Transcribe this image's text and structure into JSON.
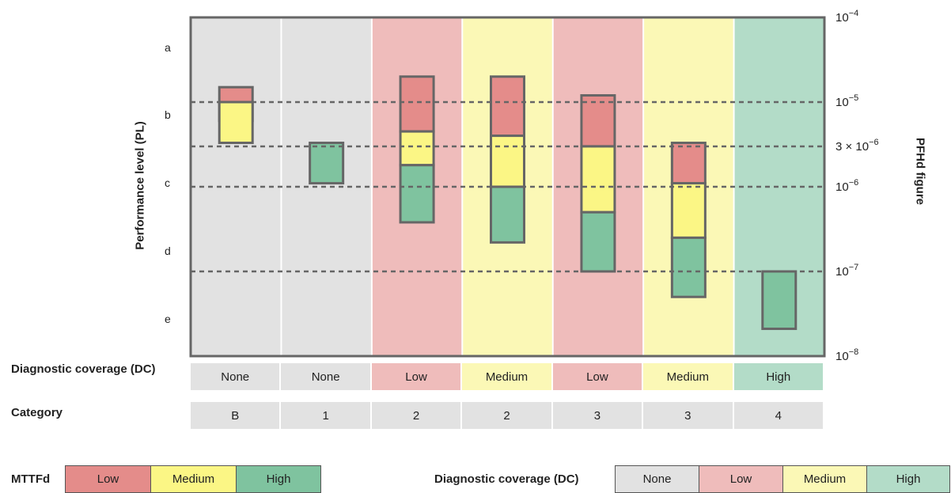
{
  "colors": {
    "dc_none": "#e2e2e2",
    "dc_low": "#efbcbb",
    "dc_medium": "#fbf8b6",
    "dc_high": "#b3dcc8",
    "mttfd_low": "#e48c8a",
    "mttfd_medium": "#fbf685",
    "mttfd_high": "#7fc39f",
    "border": "#666666"
  },
  "axes": {
    "left_label": "Performance level (PL)",
    "right_label": "PFHd figure",
    "pl_levels": [
      "a",
      "b",
      "c",
      "d",
      "e"
    ]
  },
  "pfhd_ticks": [
    {
      "id": "t4",
      "base": "10",
      "sup": "−4",
      "prefix": ""
    },
    {
      "id": "t5",
      "base": "10",
      "sup": "−5",
      "prefix": ""
    },
    {
      "id": "t3e6",
      "base": "10",
      "sup": "−6",
      "prefix": "3 × "
    },
    {
      "id": "t6",
      "base": "10",
      "sup": "−6",
      "prefix": ""
    },
    {
      "id": "t7",
      "base": "10",
      "sup": "−7",
      "prefix": ""
    },
    {
      "id": "t8",
      "base": "10",
      "sup": "−8",
      "prefix": ""
    }
  ],
  "table": {
    "dc_label": "Diagnostic coverage (DC)",
    "category_label": "Category",
    "columns": [
      {
        "dc": "None",
        "category": "B",
        "dc_key": "none"
      },
      {
        "dc": "None",
        "category": "1",
        "dc_key": "none"
      },
      {
        "dc": "Low",
        "category": "2",
        "dc_key": "low"
      },
      {
        "dc": "Medium",
        "category": "2",
        "dc_key": "medium"
      },
      {
        "dc": "Low",
        "category": "3",
        "dc_key": "low"
      },
      {
        "dc": "Medium",
        "category": "3",
        "dc_key": "medium"
      },
      {
        "dc": "High",
        "category": "4",
        "dc_key": "high"
      }
    ]
  },
  "chart_data": {
    "type": "stacked-range",
    "y_axis": "PFHd figure (log scale)",
    "ylim": [
      1e-08,
      0.0001
    ],
    "columns": [
      {
        "category": "B",
        "dc": "None",
        "segments": [
          {
            "mttfd": "low",
            "from": 1.5e-05,
            "to": 6e-06
          },
          {
            "mttfd": "medium",
            "from": 1e-05,
            "to": 3.3e-06
          }
        ]
      },
      {
        "category": "1",
        "dc": "None",
        "segments": [
          {
            "mttfd": "high",
            "from": 3.3e-06,
            "to": 1.1e-06
          }
        ]
      },
      {
        "category": "2",
        "dc": "Low",
        "segments": [
          {
            "mttfd": "low",
            "from": 2e-05,
            "to": 4.5e-06
          },
          {
            "mttfd": "medium",
            "from": 4.5e-06,
            "to": 1.8e-06
          },
          {
            "mttfd": "high",
            "from": 1.8e-06,
            "to": 3.8e-07
          }
        ]
      },
      {
        "category": "2",
        "dc": "Medium",
        "segments": [
          {
            "mttfd": "low",
            "from": 2e-05,
            "to": 4e-06
          },
          {
            "mttfd": "medium",
            "from": 4e-06,
            "to": 1e-06
          },
          {
            "mttfd": "high",
            "from": 1e-06,
            "to": 2.2e-07
          }
        ]
      },
      {
        "category": "3",
        "dc": "Low",
        "segments": [
          {
            "mttfd": "low",
            "from": 1.2e-05,
            "to": 3e-06
          },
          {
            "mttfd": "medium",
            "from": 3e-06,
            "to": 5e-07
          },
          {
            "mttfd": "high",
            "from": 5e-07,
            "to": 1e-07
          }
        ]
      },
      {
        "category": "3",
        "dc": "Medium",
        "segments": [
          {
            "mttfd": "low",
            "from": 3.3e-06,
            "to": 1.1e-06
          },
          {
            "mttfd": "medium",
            "from": 1.1e-06,
            "to": 2.5e-07
          },
          {
            "mttfd": "high",
            "from": 2.5e-07,
            "to": 5e-08
          }
        ]
      },
      {
        "category": "4",
        "dc": "High",
        "segments": [
          {
            "mttfd": "high",
            "from": 1e-07,
            "to": 2.1e-08
          }
        ]
      }
    ],
    "dashed_lines_at": [
      1e-05,
      3e-06,
      1e-06,
      1e-07
    ]
  },
  "legends": {
    "mttfd": {
      "label": "MTTFd",
      "items": [
        {
          "text": "Low",
          "key": "mttfd_low"
        },
        {
          "text": "Medium",
          "key": "mttfd_medium"
        },
        {
          "text": "High",
          "key": "mttfd_high"
        }
      ]
    },
    "dc": {
      "label": "Diagnostic coverage (DC)",
      "items": [
        {
          "text": "None",
          "key": "dc_none"
        },
        {
          "text": "Low",
          "key": "dc_low"
        },
        {
          "text": "Medium",
          "key": "dc_medium"
        },
        {
          "text": "High",
          "key": "dc_high"
        }
      ]
    }
  }
}
